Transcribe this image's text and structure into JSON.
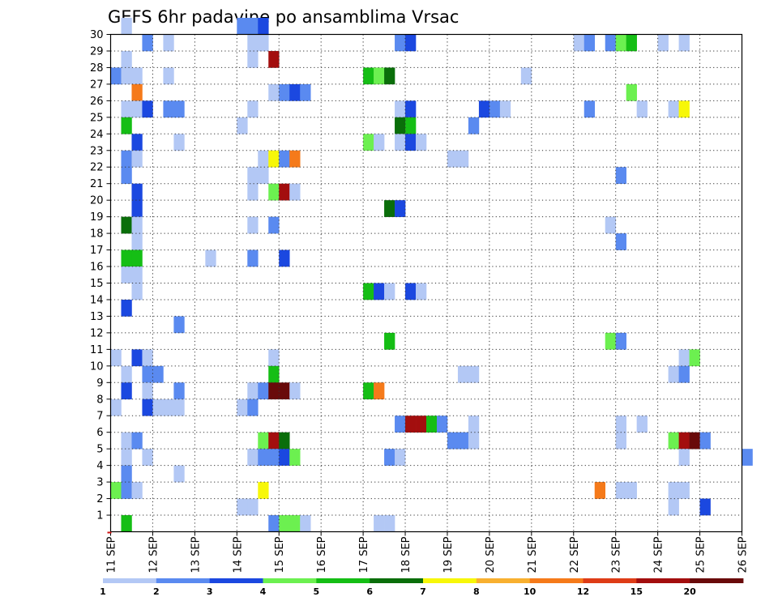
{
  "chart_data": {
    "type": "heatmap",
    "title": "GEFS 6hr padavine po ansamblima Vrsac",
    "y_ticks": [
      "1",
      "2",
      "3",
      "4",
      "5",
      "6",
      "7",
      "8",
      "9",
      "10",
      "11",
      "12",
      "13",
      "14",
      "15",
      "16",
      "17",
      "18",
      "19",
      "20",
      "21",
      "22",
      "23",
      "24",
      "25",
      "26",
      "27",
      "28",
      "29",
      "30"
    ],
    "x_ticks": [
      "11 SEP",
      "12 SEP",
      "13 SEP",
      "14 SEP",
      "15 SEP",
      "16 SEP",
      "17 SEP",
      "18 SEP",
      "19 SEP",
      "20 SEP",
      "21 SEP",
      "22 SEP",
      "23 SEP",
      "24 SEP",
      "25 SEP",
      "26 SEP"
    ],
    "xlim": [
      "11 SEP",
      "26 SEP"
    ],
    "ylim": [
      0,
      30
    ],
    "grid": true,
    "colorbar": {
      "labels": [
        "1",
        "2",
        "3",
        "4",
        "5",
        "6",
        "7",
        "8",
        "10",
        "12",
        "15",
        "20"
      ],
      "colors": [
        "#b3c8f5",
        "#5a8af0",
        "#1b48e0",
        "#6cf050",
        "#15be15",
        "#0a6e0a",
        "#f7f708",
        "#f8b030",
        "#f57a1a",
        "#de3c17",
        "#a30e0e",
        "#690a0a"
      ]
    },
    "cells": [
      {
        "member": 30,
        "t": 1,
        "v": 1
      },
      {
        "member": 30,
        "t": 12,
        "v": 2
      },
      {
        "member": 30,
        "t": 13,
        "v": 2
      },
      {
        "member": 30,
        "t": 14,
        "v": 3
      },
      {
        "member": 29,
        "t": 3,
        "v": 2
      },
      {
        "member": 29,
        "t": 5,
        "v": 1
      },
      {
        "member": 29,
        "t": 13,
        "v": 1
      },
      {
        "member": 29,
        "t": 14,
        "v": 1
      },
      {
        "member": 29,
        "t": 27,
        "v": 2
      },
      {
        "member": 29,
        "t": 28,
        "v": 3
      },
      {
        "member": 29,
        "t": 44,
        "v": 1
      },
      {
        "member": 29,
        "t": 45,
        "v": 2
      },
      {
        "member": 29,
        "t": 47,
        "v": 2
      },
      {
        "member": 29,
        "t": 48,
        "v": 4
      },
      {
        "member": 29,
        "t": 49,
        "v": 5
      },
      {
        "member": 29,
        "t": 52,
        "v": 1
      },
      {
        "member": 29,
        "t": 54,
        "v": 1
      },
      {
        "member": 28,
        "t": 1,
        "v": 1
      },
      {
        "member": 28,
        "t": 13,
        "v": 1
      },
      {
        "member": 28,
        "t": 15,
        "v": 15
      },
      {
        "member": 27,
        "t": 0,
        "v": 2
      },
      {
        "member": 27,
        "t": 1,
        "v": 1
      },
      {
        "member": 27,
        "t": 2,
        "v": 1
      },
      {
        "member": 27,
        "t": 5,
        "v": 1
      },
      {
        "member": 27,
        "t": 24,
        "v": 5
      },
      {
        "member": 27,
        "t": 25,
        "v": 4
      },
      {
        "member": 27,
        "t": 26,
        "v": 6
      },
      {
        "member": 27,
        "t": 39,
        "v": 1
      },
      {
        "member": 26,
        "t": 2,
        "v": 10
      },
      {
        "member": 26,
        "t": 15,
        "v": 1
      },
      {
        "member": 26,
        "t": 16,
        "v": 2
      },
      {
        "member": 26,
        "t": 17,
        "v": 3
      },
      {
        "member": 26,
        "t": 18,
        "v": 2
      },
      {
        "member": 26,
        "t": 49,
        "v": 4
      },
      {
        "member": 25,
        "t": 1,
        "v": 1
      },
      {
        "member": 25,
        "t": 2,
        "v": 1
      },
      {
        "member": 25,
        "t": 3,
        "v": 3
      },
      {
        "member": 25,
        "t": 5,
        "v": 2
      },
      {
        "member": 25,
        "t": 6,
        "v": 2
      },
      {
        "member": 25,
        "t": 13,
        "v": 1
      },
      {
        "member": 25,
        "t": 27,
        "v": 1
      },
      {
        "member": 25,
        "t": 28,
        "v": 3
      },
      {
        "member": 25,
        "t": 35,
        "v": 3
      },
      {
        "member": 25,
        "t": 36,
        "v": 2
      },
      {
        "member": 25,
        "t": 37,
        "v": 1
      },
      {
        "member": 25,
        "t": 45,
        "v": 2
      },
      {
        "member": 25,
        "t": 50,
        "v": 1
      },
      {
        "member": 25,
        "t": 53,
        "v": 1
      },
      {
        "member": 25,
        "t": 54,
        "v": 7
      },
      {
        "member": 24,
        "t": 1,
        "v": 5
      },
      {
        "member": 24,
        "t": 12,
        "v": 1
      },
      {
        "member": 24,
        "t": 27,
        "v": 6
      },
      {
        "member": 24,
        "t": 28,
        "v": 5
      },
      {
        "member": 24,
        "t": 34,
        "v": 2
      },
      {
        "member": 23,
        "t": 2,
        "v": 3
      },
      {
        "member": 23,
        "t": 6,
        "v": 1
      },
      {
        "member": 23,
        "t": 24,
        "v": 4
      },
      {
        "member": 23,
        "t": 25,
        "v": 1
      },
      {
        "member": 23,
        "t": 27,
        "v": 1
      },
      {
        "member": 23,
        "t": 28,
        "v": 3
      },
      {
        "member": 23,
        "t": 29,
        "v": 1
      },
      {
        "member": 22,
        "t": 1,
        "v": 2
      },
      {
        "member": 22,
        "t": 2,
        "v": 1
      },
      {
        "member": 22,
        "t": 14,
        "v": 1
      },
      {
        "member": 22,
        "t": 15,
        "v": 7
      },
      {
        "member": 22,
        "t": 16,
        "v": 2
      },
      {
        "member": 22,
        "t": 17,
        "v": 10
      },
      {
        "member": 22,
        "t": 32,
        "v": 1
      },
      {
        "member": 22,
        "t": 33,
        "v": 1
      },
      {
        "member": 21,
        "t": 1,
        "v": 2
      },
      {
        "member": 21,
        "t": 13,
        "v": 1
      },
      {
        "member": 21,
        "t": 14,
        "v": 1
      },
      {
        "member": 21,
        "t": 48,
        "v": 2
      },
      {
        "member": 20,
        "t": 2,
        "v": 3
      },
      {
        "member": 20,
        "t": 13,
        "v": 1
      },
      {
        "member": 20,
        "t": 15,
        "v": 4
      },
      {
        "member": 20,
        "t": 16,
        "v": 15
      },
      {
        "member": 20,
        "t": 17,
        "v": 1
      },
      {
        "member": 19,
        "t": 2,
        "v": 3
      },
      {
        "member": 19,
        "t": 26,
        "v": 6
      },
      {
        "member": 19,
        "t": 27,
        "v": 3
      },
      {
        "member": 18,
        "t": 1,
        "v": 6
      },
      {
        "member": 18,
        "t": 2,
        "v": 1
      },
      {
        "member": 18,
        "t": 13,
        "v": 1
      },
      {
        "member": 18,
        "t": 15,
        "v": 2
      },
      {
        "member": 18,
        "t": 47,
        "v": 1
      },
      {
        "member": 17,
        "t": 2,
        "v": 1
      },
      {
        "member": 17,
        "t": 48,
        "v": 2
      },
      {
        "member": 16,
        "t": 1,
        "v": 5
      },
      {
        "member": 16,
        "t": 2,
        "v": 5
      },
      {
        "member": 16,
        "t": 9,
        "v": 1
      },
      {
        "member": 16,
        "t": 13,
        "v": 2
      },
      {
        "member": 16,
        "t": 16,
        "v": 3
      },
      {
        "member": 15,
        "t": 1,
        "v": 1
      },
      {
        "member": 15,
        "t": 2,
        "v": 1
      },
      {
        "member": 14,
        "t": 2,
        "v": 1
      },
      {
        "member": 14,
        "t": 24,
        "v": 5
      },
      {
        "member": 14,
        "t": 25,
        "v": 3
      },
      {
        "member": 14,
        "t": 26,
        "v": 1
      },
      {
        "member": 14,
        "t": 28,
        "v": 3
      },
      {
        "member": 14,
        "t": 29,
        "v": 1
      },
      {
        "member": 13,
        "t": 1,
        "v": 3
      },
      {
        "member": 12,
        "t": 6,
        "v": 2
      },
      {
        "member": 11,
        "t": 26,
        "v": 5
      },
      {
        "member": 11,
        "t": 47,
        "v": 4
      },
      {
        "member": 11,
        "t": 48,
        "v": 2
      },
      {
        "member": 10,
        "t": 0,
        "v": 1
      },
      {
        "member": 10,
        "t": 2,
        "v": 3
      },
      {
        "member": 10,
        "t": 3,
        "v": 1
      },
      {
        "member": 10,
        "t": 15,
        "v": 1
      },
      {
        "member": 10,
        "t": 54,
        "v": 1
      },
      {
        "member": 10,
        "t": 55,
        "v": 4
      },
      {
        "member": 9,
        "t": 1,
        "v": 1
      },
      {
        "member": 9,
        "t": 3,
        "v": 2
      },
      {
        "member": 9,
        "t": 4,
        "v": 2
      },
      {
        "member": 9,
        "t": 15,
        "v": 5
      },
      {
        "member": 9,
        "t": 33,
        "v": 1
      },
      {
        "member": 9,
        "t": 34,
        "v": 1
      },
      {
        "member": 9,
        "t": 53,
        "v": 1
      },
      {
        "member": 9,
        "t": 54,
        "v": 2
      },
      {
        "member": 8,
        "t": 1,
        "v": 3
      },
      {
        "member": 8,
        "t": 3,
        "v": 1
      },
      {
        "member": 8,
        "t": 6,
        "v": 2
      },
      {
        "member": 8,
        "t": 13,
        "v": 1
      },
      {
        "member": 8,
        "t": 14,
        "v": 2
      },
      {
        "member": 8,
        "t": 15,
        "v": 20
      },
      {
        "member": 8,
        "t": 16,
        "v": 20
      },
      {
        "member": 8,
        "t": 17,
        "v": 1
      },
      {
        "member": 8,
        "t": 24,
        "v": 5
      },
      {
        "member": 8,
        "t": 25,
        "v": 10
      },
      {
        "member": 7,
        "t": 0,
        "v": 1
      },
      {
        "member": 7,
        "t": 3,
        "v": 3
      },
      {
        "member": 7,
        "t": 4,
        "v": 1
      },
      {
        "member": 7,
        "t": 5,
        "v": 1
      },
      {
        "member": 7,
        "t": 6,
        "v": 1
      },
      {
        "member": 7,
        "t": 12,
        "v": 1
      },
      {
        "member": 7,
        "t": 13,
        "v": 2
      },
      {
        "member": 6,
        "t": 27,
        "v": 2
      },
      {
        "member": 6,
        "t": 28,
        "v": 15
      },
      {
        "member": 6,
        "t": 29,
        "v": 15
      },
      {
        "member": 6,
        "t": 30,
        "v": 5
      },
      {
        "member": 6,
        "t": 31,
        "v": 2
      },
      {
        "member": 6,
        "t": 34,
        "v": 1
      },
      {
        "member": 6,
        "t": 48,
        "v": 1
      },
      {
        "member": 6,
        "t": 50,
        "v": 1
      },
      {
        "member": 5,
        "t": 1,
        "v": 1
      },
      {
        "member": 5,
        "t": 2,
        "v": 2
      },
      {
        "member": 5,
        "t": 14,
        "v": 4
      },
      {
        "member": 5,
        "t": 15,
        "v": 15
      },
      {
        "member": 5,
        "t": 16,
        "v": 6
      },
      {
        "member": 5,
        "t": 32,
        "v": 2
      },
      {
        "member": 5,
        "t": 33,
        "v": 2
      },
      {
        "member": 5,
        "t": 34,
        "v": 1
      },
      {
        "member": 5,
        "t": 48,
        "v": 1
      },
      {
        "member": 5,
        "t": 53,
        "v": 4
      },
      {
        "member": 5,
        "t": 54,
        "v": 15
      },
      {
        "member": 5,
        "t": 55,
        "v": 20
      },
      {
        "member": 5,
        "t": 56,
        "v": 2
      },
      {
        "member": 4,
        "t": 1,
        "v": 1
      },
      {
        "member": 4,
        "t": 3,
        "v": 1
      },
      {
        "member": 4,
        "t": 13,
        "v": 1
      },
      {
        "member": 4,
        "t": 14,
        "v": 2
      },
      {
        "member": 4,
        "t": 15,
        "v": 2
      },
      {
        "member": 4,
        "t": 16,
        "v": 3
      },
      {
        "member": 4,
        "t": 17,
        "v": 4
      },
      {
        "member": 4,
        "t": 26,
        "v": 2
      },
      {
        "member": 4,
        "t": 27,
        "v": 1
      },
      {
        "member": 4,
        "t": 54,
        "v": 1
      },
      {
        "member": 4,
        "t": 60,
        "v": 2
      },
      {
        "member": 3,
        "t": 1,
        "v": 2
      },
      {
        "member": 3,
        "t": 6,
        "v": 1
      },
      {
        "member": 2,
        "t": 0,
        "v": 4
      },
      {
        "member": 2,
        "t": 1,
        "v": 2
      },
      {
        "member": 2,
        "t": 2,
        "v": 1
      },
      {
        "member": 2,
        "t": 14,
        "v": 7
      },
      {
        "member": 2,
        "t": 46,
        "v": 10
      },
      {
        "member": 2,
        "t": 48,
        "v": 1
      },
      {
        "member": 2,
        "t": 49,
        "v": 1
      },
      {
        "member": 2,
        "t": 53,
        "v": 1
      },
      {
        "member": 2,
        "t": 54,
        "v": 1
      },
      {
        "member": 1,
        "t": 12,
        "v": 1
      },
      {
        "member": 1,
        "t": 13,
        "v": 1
      },
      {
        "member": 1,
        "t": 53,
        "v": 1
      },
      {
        "member": 1,
        "t": 56,
        "v": 3
      },
      {
        "member": 0,
        "t": 1,
        "v": 5
      },
      {
        "member": 0,
        "t": 15,
        "v": 2
      },
      {
        "member": 0,
        "t": 16,
        "v": 4
      },
      {
        "member": 0,
        "t": 17,
        "v": 4
      },
      {
        "member": 0,
        "t": 18,
        "v": 1
      },
      {
        "member": 0,
        "t": 25,
        "v": 1
      },
      {
        "member": 0,
        "t": 26,
        "v": 1
      }
    ]
  }
}
